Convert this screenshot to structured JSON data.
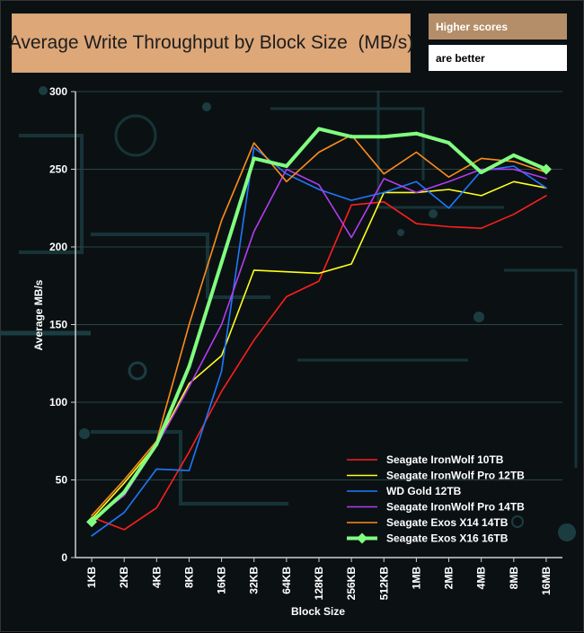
{
  "header": {
    "title": "Average Write Throughput by Block Size  (MB/s)",
    "note_line1": "Higher scores",
    "note_line2": "are better"
  },
  "chart_data": {
    "type": "line",
    "title": "Average Write Throughput by Block Size  (MB/s)",
    "xlabel": "Block Size",
    "ylabel": "Average MB/s",
    "ylim": [
      0,
      300
    ],
    "yticks": [
      0,
      50,
      100,
      150,
      200,
      250,
      300
    ],
    "categories": [
      "1KB",
      "2KB",
      "4KB",
      "8KB",
      "16KB",
      "32KB",
      "64KB",
      "128KB",
      "256KB",
      "512KB",
      "1MB",
      "2MB",
      "4MB",
      "8MB",
      "16MB"
    ],
    "legend_position": "bottom-right",
    "series": [
      {
        "name": "Seagate IronWolf 10TB",
        "color": "#ff1e1e",
        "width": 1.6,
        "values": [
          26,
          18,
          32,
          68,
          107,
          140,
          168,
          178,
          227,
          229,
          215,
          213,
          212,
          221,
          233
        ]
      },
      {
        "name": "Seagate IronWolf Pro 12TB",
        "color": "#ffff1a",
        "width": 1.6,
        "values": [
          25,
          48,
          73,
          112,
          130,
          185,
          184,
          183,
          189,
          235,
          235,
          237,
          233,
          242,
          238
        ]
      },
      {
        "name": "WD Gold 12TB",
        "color": "#1e78ff",
        "width": 1.6,
        "values": [
          14,
          29,
          57,
          56,
          120,
          264,
          247,
          237,
          230,
          235,
          242,
          225,
          249,
          252,
          238
        ]
      },
      {
        "name": "Seagate IronWolf Pro 14TB",
        "color": "#b43cf0",
        "width": 1.6,
        "values": [
          24,
          40,
          72,
          110,
          150,
          210,
          250,
          240,
          206,
          244,
          235,
          242,
          250,
          250,
          244
        ]
      },
      {
        "name": "Seagate Exos X14 14TB",
        "color": "#ff8c1a",
        "width": 1.6,
        "values": [
          27,
          50,
          75,
          150,
          217,
          267,
          242,
          261,
          272,
          247,
          261,
          245,
          257,
          255,
          248
        ]
      },
      {
        "name": "Seagate Exos X16 16TB",
        "color": "#80ff80",
        "width": 4,
        "markers": true,
        "values": [
          23,
          42,
          73,
          123,
          190,
          257,
          252,
          276,
          271,
          271,
          273,
          267,
          248,
          259,
          250
        ]
      }
    ]
  }
}
